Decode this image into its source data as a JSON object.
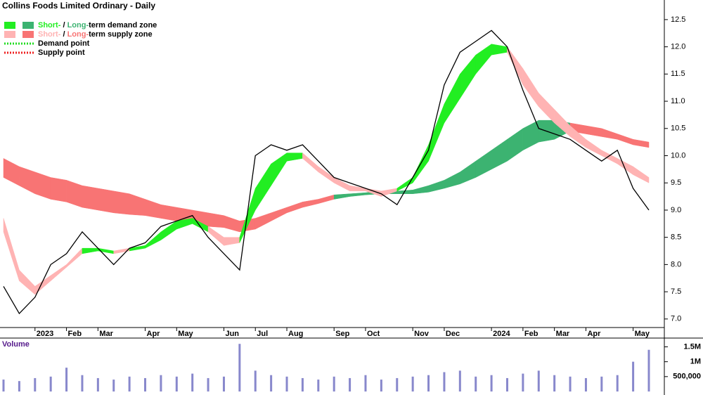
{
  "chart_data": {
    "type": "line",
    "title": "Collins Foods Limited Ordinary - Daily",
    "legend": [
      {
        "short": "Short-",
        "sep": " / ",
        "long": "Long-",
        "text": "term demand zone",
        "colors": [
          "#22ee22",
          "#3cb371"
        ]
      },
      {
        "short": "Short-",
        "sep": " / ",
        "long": "Long-",
        "text": "term supply zone",
        "colors": [
          "#ffb3b3",
          "#f87474"
        ]
      },
      {
        "text": "Demand point",
        "color": "#22dd22"
      },
      {
        "text": "Supply point",
        "color": "#ee2222"
      }
    ],
    "categories": [
      null,
      null,
      "2023",
      null,
      "Feb",
      null,
      "Mar",
      null,
      null,
      "Apr",
      null,
      "May",
      null,
      null,
      "Jun",
      null,
      "Jul",
      null,
      "Aug",
      null,
      null,
      "Sep",
      null,
      "Oct",
      null,
      null,
      "Nov",
      null,
      "Dec",
      null,
      null,
      "2024",
      null,
      "Feb",
      null,
      "Mar",
      null,
      "Apr",
      null,
      null,
      "May",
      null
    ],
    "close": [
      7.6,
      7.1,
      7.4,
      8.0,
      8.2,
      8.6,
      8.3,
      8.0,
      8.3,
      8.4,
      8.7,
      8.8,
      8.9,
      8.5,
      8.2,
      7.9,
      10.0,
      10.2,
      10.1,
      10.2,
      9.9,
      9.6,
      9.5,
      9.4,
      9.3,
      9.1,
      9.6,
      10.1,
      11.3,
      11.9,
      12.1,
      12.3,
      12.0,
      11.2,
      10.5,
      10.4,
      10.3,
      10.1,
      9.9,
      10.1,
      9.4,
      9.0
    ],
    "volume_label": "Volume",
    "volume": [
      400000,
      350000,
      450000,
      500000,
      800000,
      550000,
      450000,
      400000,
      500000,
      450000,
      550000,
      500000,
      600000,
      450000,
      500000,
      1600000,
      700000,
      550000,
      500000,
      450000,
      400000,
      500000,
      450000,
      550000,
      400000,
      450000,
      500000,
      550000,
      650000,
      700000,
      500000,
      550000,
      450000,
      600000,
      700000,
      550000,
      500000,
      450000,
      500000,
      550000,
      1000000,
      1400000
    ],
    "short_zone": {
      "upper": [
        8.85,
        7.9,
        7.6,
        7.8,
        8.0,
        8.3,
        8.3,
        8.25,
        8.3,
        8.35,
        8.6,
        8.8,
        8.85,
        8.7,
        8.5,
        8.5,
        9.4,
        9.85,
        10.05,
        10.05,
        9.8,
        9.6,
        9.45,
        9.4,
        9.35,
        9.4,
        9.6,
        10.2,
        10.95,
        11.5,
        11.85,
        12.05,
        12.0,
        11.6,
        11.15,
        10.85,
        10.55,
        10.3,
        10.1,
        9.95,
        9.8,
        9.6
      ],
      "lower": [
        8.6,
        7.7,
        7.45,
        7.7,
        7.95,
        8.2,
        8.25,
        8.2,
        8.25,
        8.3,
        8.45,
        8.65,
        8.75,
        8.6,
        8.35,
        8.4,
        9.0,
        9.45,
        9.9,
        9.95,
        9.7,
        9.5,
        9.35,
        9.35,
        9.25,
        9.35,
        9.5,
        9.9,
        10.6,
        11.05,
        11.5,
        11.85,
        11.9,
        11.3,
        10.9,
        10.6,
        10.35,
        10.15,
        10.0,
        9.85,
        9.65,
        9.5
      ],
      "state": [
        "supply",
        "supply",
        "supply",
        "supply",
        "supply",
        "demand",
        "demand",
        "supply",
        "demand",
        "demand",
        "demand",
        "demand",
        "demand",
        "supply",
        "supply",
        "demand",
        "demand",
        "demand",
        "demand",
        "supply",
        "supply",
        "supply",
        "supply",
        "supply",
        "supply",
        "demand",
        "demand",
        "demand",
        "demand",
        "demand",
        "demand",
        "demand",
        "supply",
        "supply",
        "supply",
        "supply",
        "supply",
        "supply",
        "supply",
        "supply",
        "supply",
        "supply"
      ]
    },
    "long_zone": {
      "upper": [
        9.95,
        9.8,
        9.7,
        9.6,
        9.55,
        9.45,
        9.4,
        9.35,
        9.3,
        9.2,
        9.1,
        9.05,
        9.0,
        8.95,
        8.9,
        8.8,
        8.85,
        8.95,
        9.05,
        9.15,
        9.2,
        9.28,
        9.3,
        9.32,
        9.35,
        9.35,
        9.37,
        9.45,
        9.55,
        9.7,
        9.9,
        10.1,
        10.3,
        10.5,
        10.65,
        10.65,
        10.6,
        10.55,
        10.5,
        10.4,
        10.3,
        10.25
      ],
      "lower": [
        9.6,
        9.45,
        9.3,
        9.2,
        9.15,
        9.05,
        9.0,
        8.95,
        8.92,
        8.9,
        8.85,
        8.8,
        8.75,
        8.7,
        8.68,
        8.6,
        8.65,
        8.8,
        8.95,
        9.05,
        9.12,
        9.2,
        9.25,
        9.28,
        9.3,
        9.3,
        9.3,
        9.33,
        9.4,
        9.48,
        9.6,
        9.75,
        9.9,
        10.1,
        10.25,
        10.3,
        10.45,
        10.4,
        10.35,
        10.3,
        10.2,
        10.15
      ],
      "state": [
        "supply",
        "supply",
        "supply",
        "supply",
        "supply",
        "supply",
        "supply",
        "supply",
        "supply",
        "supply",
        "supply",
        "supply",
        "supply",
        "supply",
        "supply",
        "supply",
        "supply",
        "supply",
        "supply",
        "supply",
        "supply",
        "demand",
        "demand",
        "demand",
        "demand",
        "demand",
        "demand",
        "demand",
        "demand",
        "demand",
        "demand",
        "demand",
        "demand",
        "demand",
        "demand",
        "demand",
        "supply",
        "supply",
        "supply",
        "supply",
        "supply",
        "supply"
      ]
    },
    "price_color": "#000000",
    "volume_color": "#8888cc",
    "ylim": [
      6.83,
      12.86
    ],
    "yticks": [
      {
        "value": 7,
        "label": "7.0"
      },
      7.5,
      {
        "value": 8,
        "label": "8.0"
      },
      8.5,
      {
        "value": 9,
        "label": "9.0"
      },
      9.5,
      {
        "value": 10,
        "label": "10.0"
      },
      10.5,
      {
        "value": 11,
        "label": "11.0"
      },
      11.5,
      {
        "value": 12,
        "label": "12.0"
      },
      12.5
    ],
    "y2lim": [
      0,
      1700000
    ],
    "y2ticks": [
      {
        "value": 500000,
        "label": "500,000"
      },
      {
        "value": 1000000,
        "label": "1M"
      },
      {
        "value": 1500000,
        "label": "1.5M"
      }
    ]
  }
}
